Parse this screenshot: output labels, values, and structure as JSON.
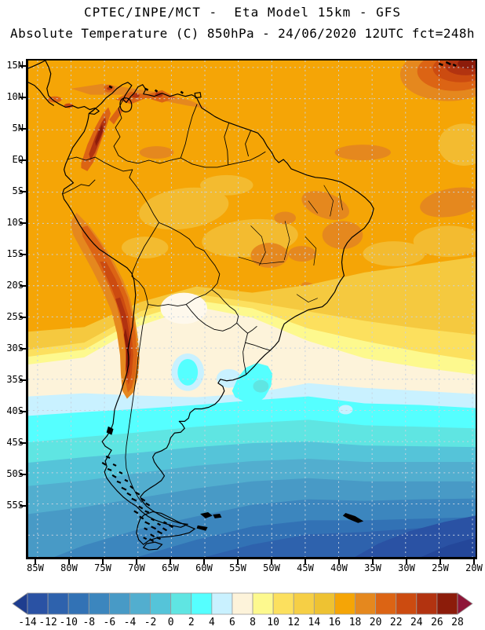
{
  "header": {
    "title": "CPTEC/INPE/MCT -  Eta Model 15km - GFS",
    "subtitle": "Absolute Temperature (C) 850hPa - 24/06/2020 12UTC fct=248h"
  },
  "map": {
    "lat_labels": [
      "15N",
      "10N",
      "5N",
      "EQ",
      "5S",
      "10S",
      "15S",
      "20S",
      "25S",
      "30S",
      "35S",
      "40S",
      "45S",
      "50S",
      "55S"
    ],
    "lon_labels": [
      "85W",
      "80W",
      "75W",
      "70W",
      "65W",
      "60W",
      "55W",
      "50W",
      "45W",
      "40W",
      "35W",
      "30W",
      "25W",
      "20W"
    ]
  },
  "colorbar": {
    "tick_labels": [
      "-14",
      "-12",
      "-10",
      "-8",
      "-6",
      "-4",
      "-2",
      "0",
      "2",
      "4",
      "6",
      "8",
      "10",
      "12",
      "14",
      "16",
      "18",
      "20",
      "22",
      "24",
      "26",
      "28"
    ],
    "cell_colors": [
      "#2a52a4",
      "#2e62ad",
      "#3272b5",
      "#3c86be",
      "#489ac6",
      "#52aecf",
      "#55c4d9",
      "#5fe5e2",
      "#55ffff",
      "#c9f1ff",
      "#fdf3da",
      "#fdf98e",
      "#fce05e",
      "#f6cf45",
      "#eec232",
      "#f5a506",
      "#e5881e",
      "#dc6414",
      "#cc4b10",
      "#b23310",
      "#8c1c0a"
    ],
    "left_arrow_color": "#1e3d8f",
    "right_arrow_color": "#8e1537"
  },
  "chart_data": {
    "type": "heatmap",
    "title": "CPTEC/INPE/MCT -  Eta Model 15km - GFS",
    "subtitle": "Absolute Temperature (C) 850hPa - 24/06/2020 12UTC fct=248h",
    "institution": "CPTEC/INPE/MCT",
    "model": "Eta Model 15km",
    "boundary_model": "GFS",
    "variable": "Absolute Temperature",
    "units": "C",
    "level": "850hPa",
    "valid_time": "24/06/2020 12UTC",
    "forecast": "fct=248h",
    "x_axis": {
      "label_type": "longitude",
      "ticks": [
        "85W",
        "80W",
        "75W",
        "70W",
        "65W",
        "60W",
        "55W",
        "50W",
        "45W",
        "40W",
        "35W",
        "30W",
        "25W",
        "20W"
      ]
    },
    "y_axis": {
      "label_type": "latitude",
      "ticks": [
        "15N",
        "10N",
        "5N",
        "EQ",
        "5S",
        "10S",
        "15S",
        "20S",
        "25S",
        "30S",
        "35S",
        "40S",
        "45S",
        "50S",
        "55S"
      ]
    },
    "scale_values": [
      -14,
      -12,
      -10,
      -8,
      -6,
      -4,
      -2,
      0,
      2,
      4,
      6,
      8,
      10,
      12,
      14,
      16,
      18,
      20,
      22,
      24,
      26,
      28
    ],
    "scale_colors": [
      "#2a52a4",
      "#2e62ad",
      "#3272b5",
      "#3c86be",
      "#489ac6",
      "#52aecf",
      "#55c4d9",
      "#5fe5e2",
      "#55ffff",
      "#c9f1ff",
      "#fdf3da",
      "#fdf98e",
      "#fce05e",
      "#f6cf45",
      "#eec232",
      "#f5a506",
      "#e5881e",
      "#dc6414",
      "#cc4b10",
      "#b23310",
      "#8c1c0a"
    ],
    "legend_position": "bottom",
    "grid": true
  }
}
